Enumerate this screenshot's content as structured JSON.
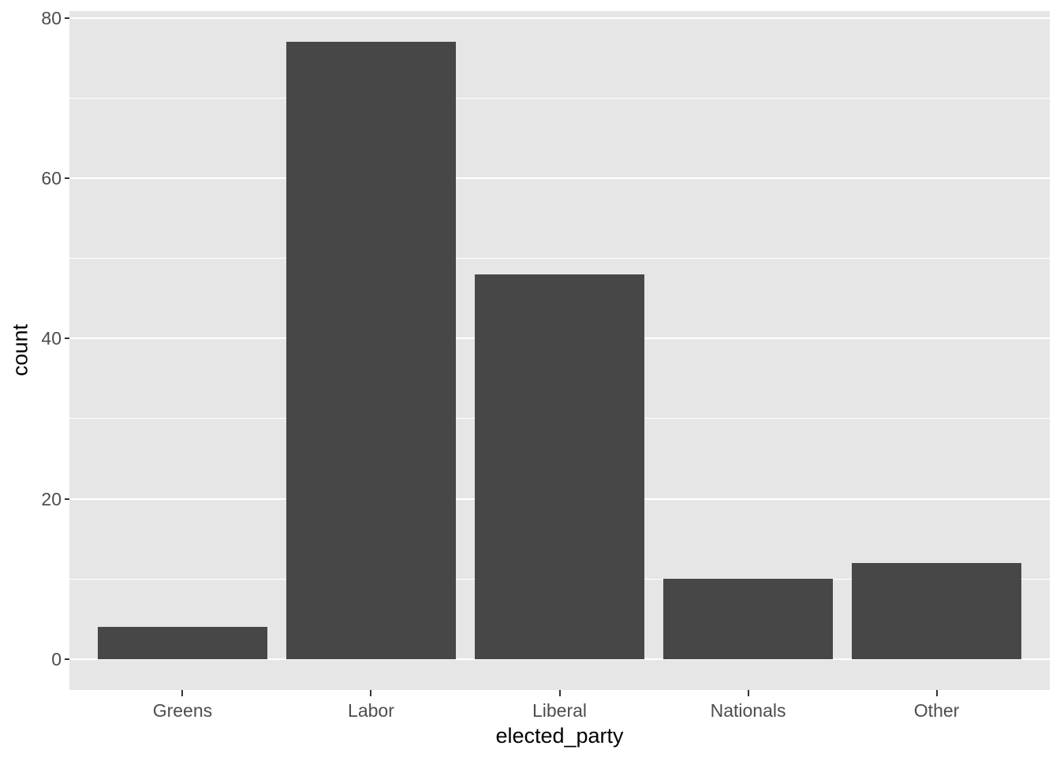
{
  "chart_data": {
    "type": "bar",
    "title": "",
    "categories": [
      "Greens",
      "Labor",
      "Liberal",
      "Nationals",
      "Other"
    ],
    "values": [
      4,
      77,
      48,
      10,
      12
    ],
    "xlabel": "elected_party",
    "ylabel": "count",
    "ylim": [
      -3.85,
      80.85
    ],
    "y_major_ticks": [
      0,
      20,
      40,
      60,
      80
    ],
    "y_major_tick_labels": [
      "0",
      "20",
      "40",
      "60",
      "80"
    ],
    "y_minor_ticks": [
      10,
      30,
      50,
      70
    ],
    "bar_width_fraction": 0.9,
    "grid": "on",
    "legend_position": "none",
    "colors": {
      "bar_fill": "#474747",
      "panel_background": "#e6e6e6",
      "gridline": "#ffffff",
      "tick_mark": "#333333",
      "tick_label": "#4d4d4d",
      "axis_title": "#000000",
      "page_background": "#ffffff"
    }
  }
}
